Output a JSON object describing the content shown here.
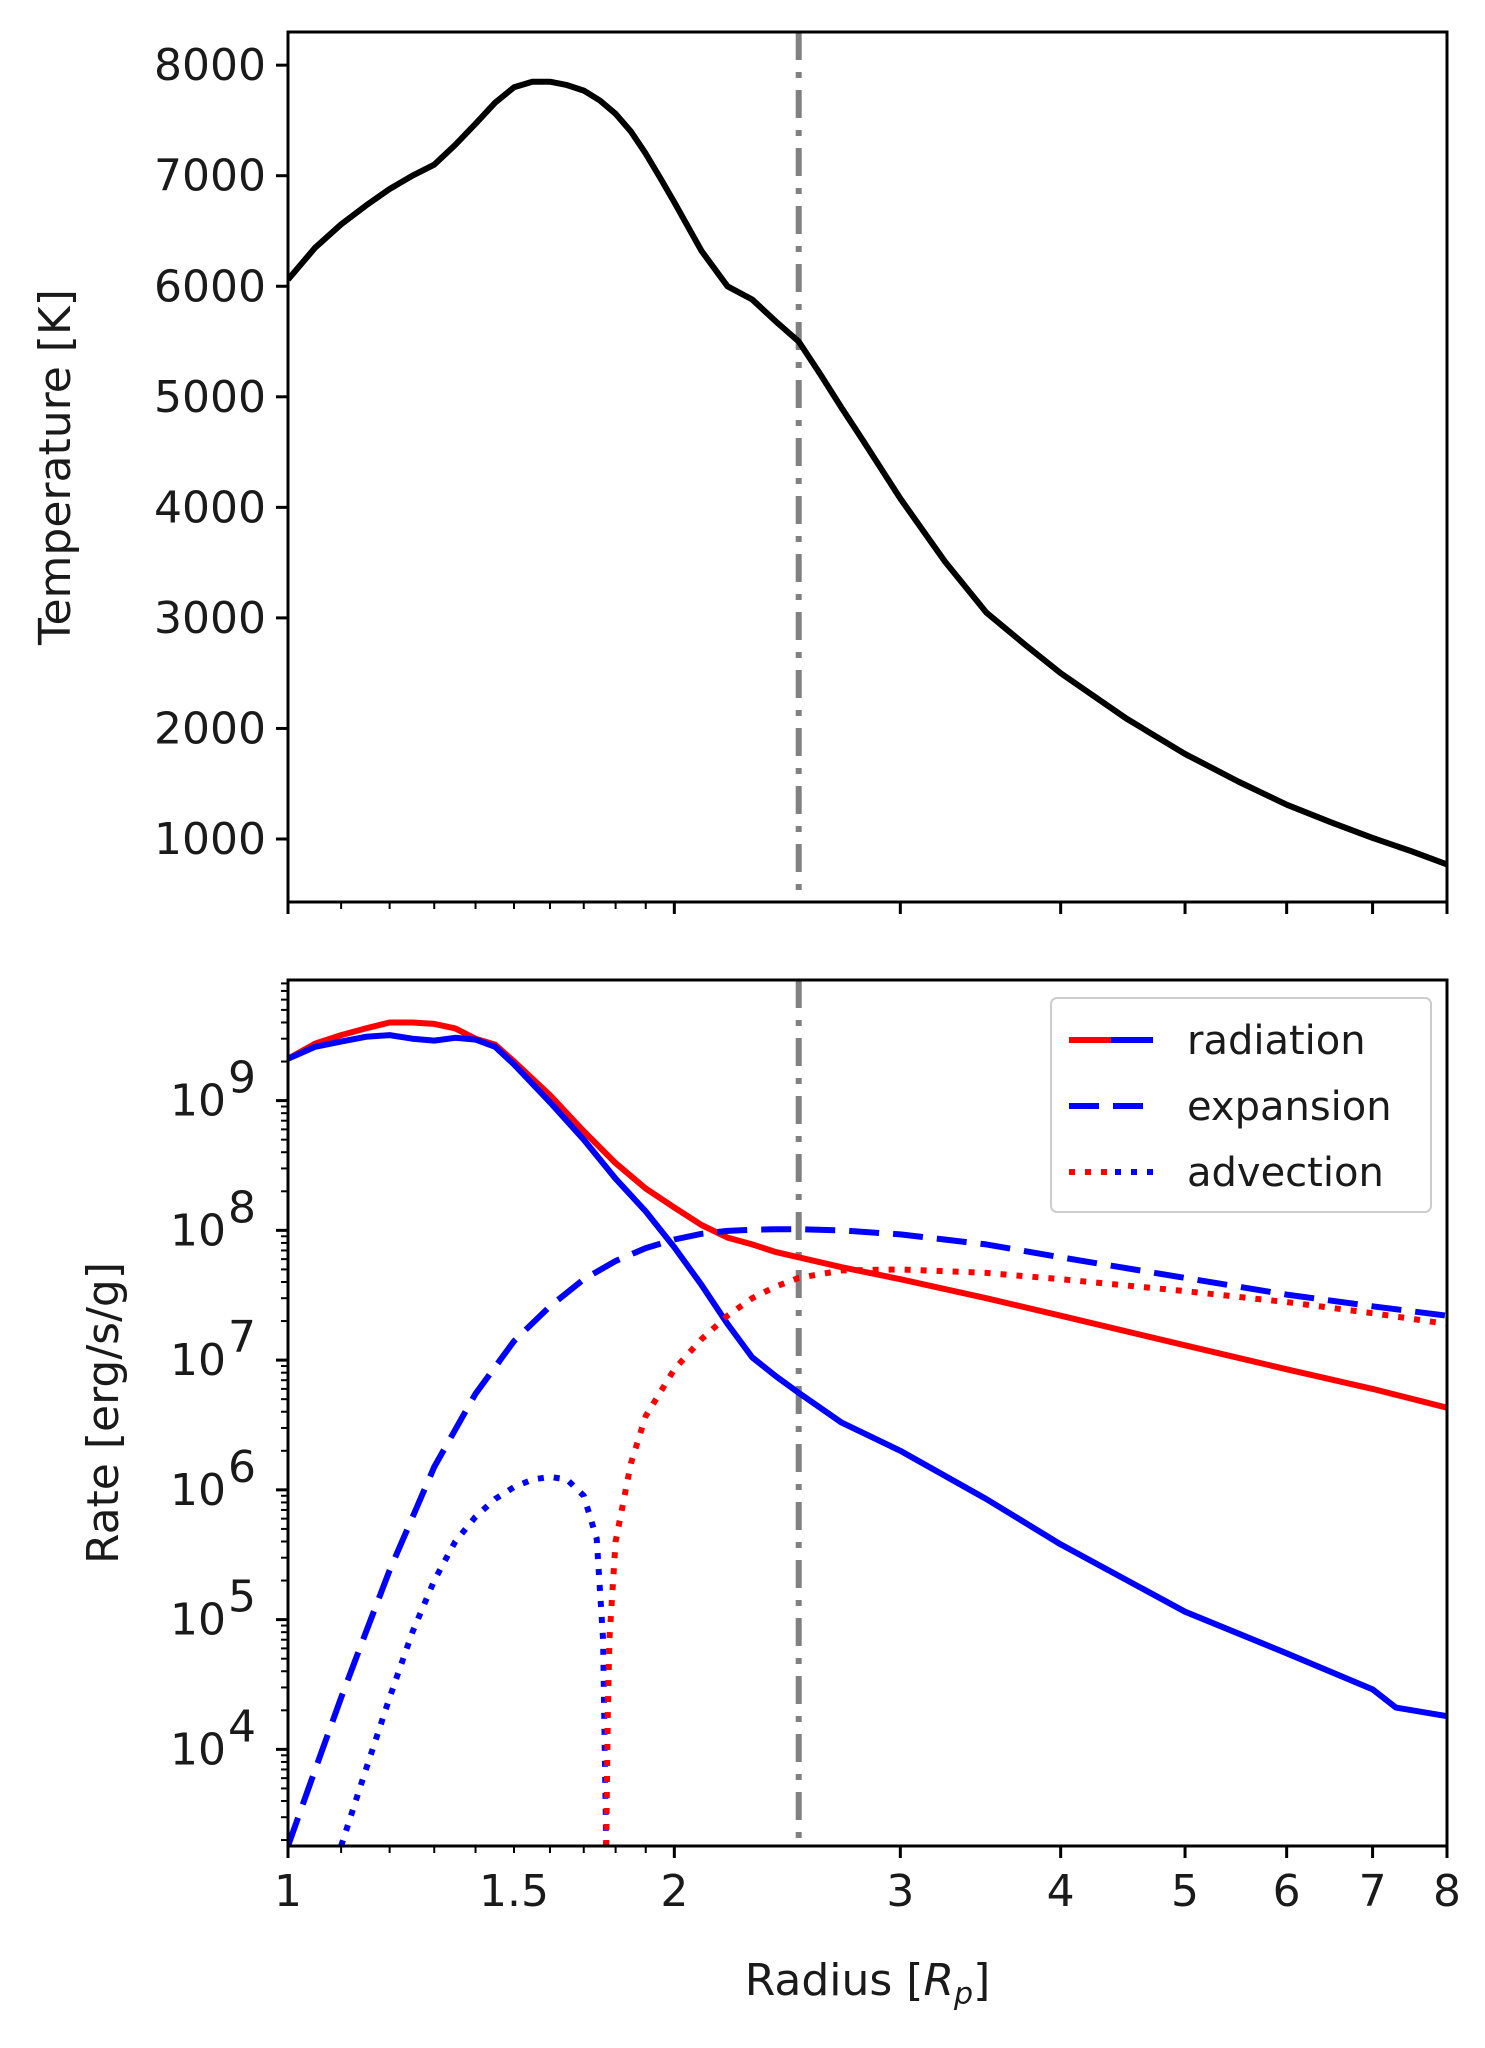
{
  "chart_data": [
    {
      "id": "temperature",
      "type": "line",
      "xscale": "log",
      "xlim": [
        1,
        8
      ],
      "ylim": [
        430,
        8300
      ],
      "ylabel": "Temperature [K]",
      "yticks": [
        1000,
        2000,
        3000,
        4000,
        5000,
        6000,
        7000,
        8000
      ],
      "ytick_labels": [
        "1000",
        "2000",
        "3000",
        "4000",
        "5000",
        "6000",
        "7000",
        "8000"
      ],
      "vline": {
        "x": 2.5,
        "color": "#808080",
        "style": "dashdot"
      },
      "series": [
        {
          "name": "temperature",
          "color": "#000000",
          "style": "solid",
          "x": [
            1.0,
            1.05,
            1.1,
            1.15,
            1.2,
            1.25,
            1.3,
            1.35,
            1.4,
            1.45,
            1.5,
            1.55,
            1.6,
            1.65,
            1.7,
            1.75,
            1.8,
            1.85,
            1.9,
            1.95,
            2.0,
            2.1,
            2.2,
            2.3,
            2.4,
            2.5,
            2.6,
            2.7,
            2.8,
            3.0,
            3.25,
            3.5,
            3.75,
            4.0,
            4.5,
            5.0,
            5.5,
            6.0,
            6.5,
            7.0,
            7.5,
            8.0
          ],
          "y": [
            6060,
            6350,
            6560,
            6730,
            6880,
            7000,
            7100,
            7280,
            7470,
            7660,
            7800,
            7850,
            7850,
            7820,
            7770,
            7680,
            7560,
            7400,
            7200,
            6980,
            6760,
            6320,
            6000,
            5880,
            5680,
            5500,
            5200,
            4900,
            4620,
            4080,
            3510,
            3050,
            2760,
            2500,
            2090,
            1770,
            1520,
            1310,
            1150,
            1010,
            890,
            770
          ]
        }
      ]
    },
    {
      "id": "rates",
      "type": "line",
      "xscale": "log",
      "yscale": "log",
      "xlim": [
        1,
        8
      ],
      "ylim": [
        1800,
        8500000000
      ],
      "xlabel": "Radius [R_p]",
      "xlabel_main": "Radius [",
      "xlabel_R": "R",
      "xlabel_sub": "p",
      "xlabel_close": "]",
      "ylabel": "Rate [erg/s/g]",
      "xticks": [
        1,
        1.5,
        2,
        3,
        4,
        5,
        6,
        7,
        8
      ],
      "xtick_labels": [
        "1",
        "1.5",
        "2",
        "3",
        "4",
        "5",
        "6",
        "7",
        "8"
      ],
      "yticks_exp": [
        4,
        5,
        6,
        7,
        8,
        9
      ],
      "ytick_base": "10",
      "ytick_exps": [
        "4",
        "5",
        "6",
        "7",
        "8",
        "9"
      ],
      "vline": {
        "x": 2.5,
        "color": "#808080",
        "style": "dashdot"
      },
      "legend": {
        "position": "upper right",
        "entries": [
          "radiation",
          "expansion",
          "advection"
        ]
      },
      "series": [
        {
          "name": "radiation (heating)",
          "color": "#ff0000",
          "style": "solid",
          "x": [
            1.0,
            1.05,
            1.1,
            1.15,
            1.2,
            1.25,
            1.3,
            1.35,
            1.4,
            1.45,
            1.5,
            1.6,
            1.7,
            1.8,
            1.9,
            2.0,
            2.1,
            2.2,
            2.3,
            2.4,
            2.5,
            2.7,
            3.0,
            3.5,
            4.0,
            5.0,
            6.0,
            7.0,
            8.0
          ],
          "y": [
            2100000000,
            2750000000,
            3200000000,
            3600000000,
            4000000000,
            4000000000,
            3900000000,
            3600000000,
            3000000000,
            2700000000,
            2000000000,
            1100000000,
            580000000,
            330000000,
            210000000,
            150000000,
            110000000,
            88000000,
            78000000,
            68000000,
            62000000,
            52000000,
            42000000,
            30000000,
            22000000,
            13000000,
            8500000,
            6000000,
            4300000
          ]
        },
        {
          "name": "radiation (cooling)",
          "color": "#0000ff",
          "style": "solid",
          "x": [
            1.0,
            1.05,
            1.1,
            1.15,
            1.2,
            1.25,
            1.3,
            1.35,
            1.4,
            1.45,
            1.5,
            1.6,
            1.7,
            1.8,
            1.9,
            2.0,
            2.1,
            2.2,
            2.3,
            2.4,
            2.5,
            2.7,
            3.0,
            3.5,
            4.0,
            5.0,
            6.0,
            7.0,
            7.3,
            8.0
          ],
          "y": [
            2100000000,
            2600000000,
            2850000000,
            3100000000,
            3200000000,
            3000000000,
            2900000000,
            3050000000,
            2950000000,
            2600000000,
            1900000000,
            970000000,
            500000000,
            250000000,
            140000000,
            74000000,
            38000000,
            19000000,
            10500000,
            7500000,
            5600000,
            3300000,
            2000000,
            850000,
            380000,
            115000,
            55000,
            29000,
            21000,
            18000
          ]
        },
        {
          "name": "expansion",
          "color": "#0000ff",
          "style": "dashed",
          "x": [
            1.0,
            1.05,
            1.1,
            1.15,
            1.2,
            1.3,
            1.4,
            1.5,
            1.6,
            1.7,
            1.8,
            1.9,
            2.0,
            2.1,
            2.2,
            2.3,
            2.4,
            2.5,
            2.7,
            3.0,
            3.5,
            4.0,
            5.0,
            6.0,
            7.0,
            8.0
          ],
          "y": [
            1800,
            7000,
            25000,
            80000,
            240000,
            1500000,
            5500000,
            14000000,
            26000000,
            42000000,
            58000000,
            73000000,
            85000000,
            94000000,
            99000000,
            101000000,
            102000000,
            102000000,
            100000000,
            93000000,
            78000000,
            62000000,
            43000000,
            32000000,
            26000000,
            22000000
          ]
        },
        {
          "name": "advection (cooling)",
          "color": "#0000ff",
          "style": "dotted",
          "x": [
            1.1,
            1.15,
            1.2,
            1.25,
            1.3,
            1.35,
            1.4,
            1.45,
            1.5,
            1.55,
            1.6,
            1.65,
            1.7,
            1.74,
            1.76,
            1.77
          ],
          "y": [
            1800,
            7000,
            25000,
            80000,
            200000,
            400000,
            620000,
            850000,
            1050000,
            1200000,
            1260000,
            1200000,
            900000,
            420000,
            70000,
            1800
          ]
        },
        {
          "name": "advection (heating)",
          "color": "#ff0000",
          "style": "dotted",
          "x": [
            1.77,
            1.775,
            1.78,
            1.8,
            1.85,
            1.9,
            2.0,
            2.1,
            2.2,
            2.3,
            2.4,
            2.5,
            2.7,
            3.0,
            3.5,
            4.0,
            5.0,
            6.0,
            7.0,
            8.0
          ],
          "y": [
            1800,
            18000,
            70000,
            400000,
            1600000,
            3700000,
            8500000,
            14500000,
            22000000,
            30000000,
            37000000,
            43000000,
            49000000,
            50000000,
            47000000,
            42000000,
            34000000,
            28000000,
            23000000,
            19000000
          ]
        }
      ]
    }
  ]
}
